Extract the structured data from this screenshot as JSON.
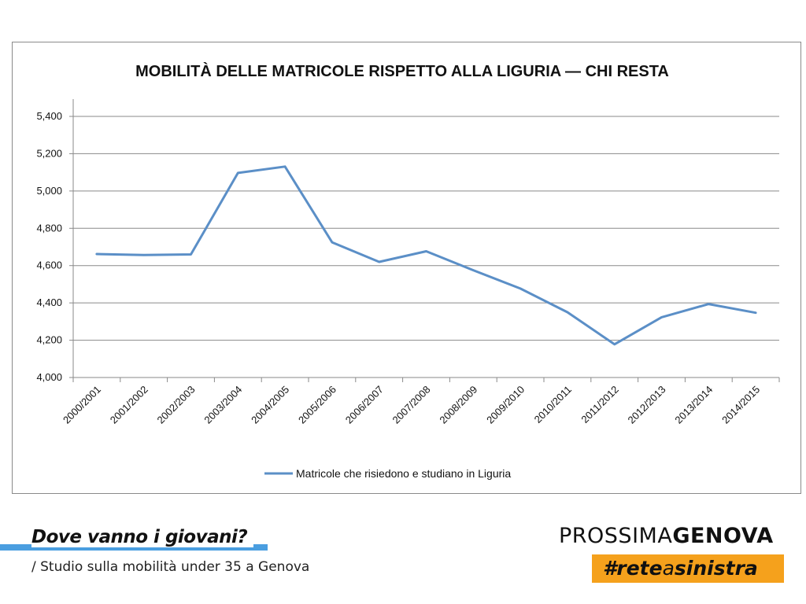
{
  "chart_data": {
    "type": "line",
    "title": "MOBILITÀ DELLE MATRICOLE RISPETTO ALLA LIGURIA — CHI RESTA",
    "xlabel": "",
    "ylabel": "",
    "categories": [
      "2000/2001",
      "2001/2002",
      "2002/2003",
      "2003/2004",
      "2004/2005",
      "2005/2006",
      "2006/2007",
      "2007/2008",
      "2008/2009",
      "2009/2010",
      "2010/2011",
      "2011/2012",
      "2012/2013",
      "2013/2014",
      "2014/2015"
    ],
    "series": [
      {
        "name": "Matricole che risiedono e studiano in Liguria",
        "values": [
          4662,
          4657,
          4660,
          5097,
          5131,
          4725,
          4620,
          4677,
          4575,
          4477,
          4350,
          4178,
          4323,
          4394,
          4347
        ],
        "color": "#5b8fc7"
      }
    ],
    "ylim": [
      4000,
      5400
    ],
    "yticks": [
      4000,
      4200,
      4400,
      4600,
      4800,
      5000,
      5200,
      5400
    ],
    "ytick_labels": [
      "4,000",
      "4,200",
      "4,400",
      "4,600",
      "4,800",
      "5,000",
      "5,200",
      "5,400"
    ],
    "grid": true,
    "legend": "bottom"
  },
  "footer": {
    "title": "Dove vanno i giovani?",
    "subtitle": "/ Studio sulla mobilità under 35 a Genova",
    "brand_light": "PROSSIMA",
    "brand_bold": "GENOVA",
    "hashtag_bold1": "#rete",
    "hashtag_light": "a",
    "hashtag_bold2": "sinistra",
    "accent_blue": "#4a9ee0",
    "accent_orange": "#f5a11c"
  }
}
